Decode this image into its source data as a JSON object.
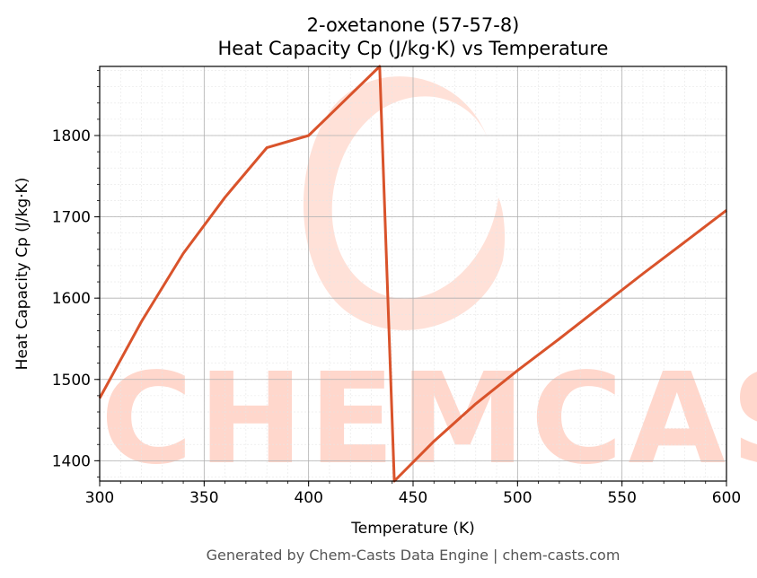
{
  "chart_data": {
    "type": "line",
    "title_line1": "2-oxetanone (57-57-8)",
    "title_line2": "Heat Capacity Cp (J/kg·K) vs Temperature",
    "xlabel": "Temperature (K)",
    "ylabel": "Heat Capacity Cp (J/kg·K)",
    "xlim": [
      300,
      600
    ],
    "ylim": [
      1375,
      1885
    ],
    "x_ticks": [
      300,
      350,
      400,
      450,
      500,
      550,
      600
    ],
    "y_ticks": [
      1400,
      1500,
      1600,
      1700,
      1800
    ],
    "grid": true,
    "line_color": "#d9532b",
    "series": [
      {
        "x": [
          300,
          320,
          340,
          360,
          380,
          400,
          420,
          434,
          441,
          460,
          480,
          500,
          520,
          540,
          560,
          580,
          600
        ],
        "y": [
          1477,
          1571,
          1655,
          1724,
          1785,
          1800,
          1850,
          1885,
          1375,
          1424,
          1470,
          1511,
          1550,
          1590,
          1630,
          1669,
          1708
        ]
      }
    ]
  },
  "footer": "Generated by Chem-Casts Data Engine | chem-casts.com",
  "watermark": "CHEMCASTS"
}
